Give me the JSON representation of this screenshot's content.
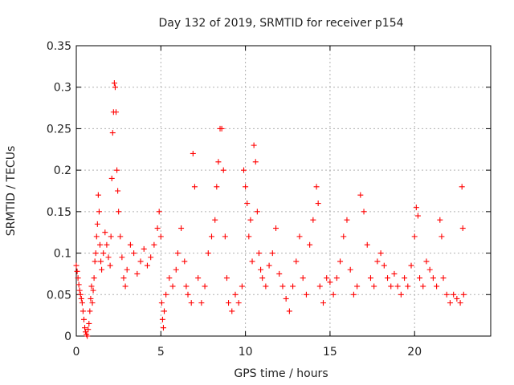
{
  "chart_data": {
    "type": "scatter",
    "title": "Day 132 of 2019, SRMTID for receiver p154",
    "xlabel": "GPS time / hours",
    "ylabel": "SRMTID / TECUs",
    "xlim": [
      0,
      24.5
    ],
    "ylim": [
      0,
      0.35
    ],
    "xticks": [
      0,
      5,
      10,
      15,
      20
    ],
    "xtick_labels": [
      "0",
      "5",
      "10",
      "15",
      "20"
    ],
    "yticks": [
      0,
      0.05,
      0.1,
      0.15,
      0.2,
      0.25,
      0.3,
      0.35
    ],
    "ytick_labels": [
      "0",
      "0.05",
      "0.1",
      "0.15",
      "0.2",
      "0.25",
      "0.3",
      "0.35"
    ],
    "grid": true,
    "marker": "+",
    "color": "#ff0000",
    "series": [
      {
        "name": "SRMTID",
        "points": [
          [
            0.0,
            0.085
          ],
          [
            0.05,
            0.078
          ],
          [
            0.1,
            0.07
          ],
          [
            0.15,
            0.062
          ],
          [
            0.2,
            0.055
          ],
          [
            0.25,
            0.05
          ],
          [
            0.3,
            0.045
          ],
          [
            0.35,
            0.04
          ],
          [
            0.4,
            0.03
          ],
          [
            0.45,
            0.02
          ],
          [
            0.5,
            0.01
          ],
          [
            0.55,
            0.005
          ],
          [
            0.6,
            0.002
          ],
          [
            0.65,
            0.0
          ],
          [
            0.7,
            0.008
          ],
          [
            0.75,
            0.015
          ],
          [
            0.8,
            0.03
          ],
          [
            0.85,
            0.045
          ],
          [
            0.9,
            0.06
          ],
          [
            0.95,
            0.04
          ],
          [
            1.0,
            0.055
          ],
          [
            1.05,
            0.07
          ],
          [
            1.1,
            0.09
          ],
          [
            1.15,
            0.1
          ],
          [
            1.2,
            0.12
          ],
          [
            1.25,
            0.135
          ],
          [
            1.3,
            0.17
          ],
          [
            1.35,
            0.15
          ],
          [
            1.4,
            0.11
          ],
          [
            1.45,
            0.09
          ],
          [
            1.5,
            0.08
          ],
          [
            1.6,
            0.1
          ],
          [
            1.7,
            0.125
          ],
          [
            1.8,
            0.11
          ],
          [
            1.9,
            0.095
          ],
          [
            2.0,
            0.085
          ],
          [
            2.05,
            0.12
          ],
          [
            2.1,
            0.19
          ],
          [
            2.15,
            0.245
          ],
          [
            2.2,
            0.27
          ],
          [
            2.25,
            0.305
          ],
          [
            2.3,
            0.3
          ],
          [
            2.35,
            0.27
          ],
          [
            2.4,
            0.2
          ],
          [
            2.45,
            0.175
          ],
          [
            2.5,
            0.15
          ],
          [
            2.6,
            0.12
          ],
          [
            2.7,
            0.095
          ],
          [
            2.8,
            0.07
          ],
          [
            2.9,
            0.06
          ],
          [
            3.0,
            0.08
          ],
          [
            3.2,
            0.11
          ],
          [
            3.4,
            0.1
          ],
          [
            3.6,
            0.075
          ],
          [
            3.8,
            0.09
          ],
          [
            4.0,
            0.105
          ],
          [
            4.2,
            0.085
          ],
          [
            4.4,
            0.095
          ],
          [
            4.6,
            0.11
          ],
          [
            4.8,
            0.13
          ],
          [
            4.9,
            0.15
          ],
          [
            5.0,
            0.12
          ],
          [
            5.05,
            0.04
          ],
          [
            5.1,
            0.02
          ],
          [
            5.15,
            0.01
          ],
          [
            5.2,
            0.03
          ],
          [
            5.3,
            0.05
          ],
          [
            5.5,
            0.07
          ],
          [
            5.7,
            0.06
          ],
          [
            5.9,
            0.08
          ],
          [
            6.0,
            0.1
          ],
          [
            6.2,
            0.13
          ],
          [
            6.4,
            0.09
          ],
          [
            6.5,
            0.06
          ],
          [
            6.6,
            0.05
          ],
          [
            6.8,
            0.04
          ],
          [
            6.9,
            0.22
          ],
          [
            7.0,
            0.18
          ],
          [
            7.2,
            0.07
          ],
          [
            7.4,
            0.04
          ],
          [
            7.6,
            0.06
          ],
          [
            7.8,
            0.1
          ],
          [
            8.0,
            0.12
          ],
          [
            8.2,
            0.14
          ],
          [
            8.3,
            0.18
          ],
          [
            8.4,
            0.21
          ],
          [
            8.5,
            0.25
          ],
          [
            8.6,
            0.25
          ],
          [
            8.7,
            0.2
          ],
          [
            8.8,
            0.12
          ],
          [
            8.9,
            0.07
          ],
          [
            9.0,
            0.04
          ],
          [
            9.2,
            0.03
          ],
          [
            9.4,
            0.05
          ],
          [
            9.6,
            0.04
          ],
          [
            9.8,
            0.06
          ],
          [
            9.9,
            0.2
          ],
          [
            10.0,
            0.18
          ],
          [
            10.1,
            0.16
          ],
          [
            10.2,
            0.12
          ],
          [
            10.3,
            0.14
          ],
          [
            10.4,
            0.09
          ],
          [
            10.5,
            0.23
          ],
          [
            10.6,
            0.21
          ],
          [
            10.7,
            0.15
          ],
          [
            10.8,
            0.1
          ],
          [
            10.9,
            0.08
          ],
          [
            11.0,
            0.07
          ],
          [
            11.2,
            0.06
          ],
          [
            11.4,
            0.085
          ],
          [
            11.6,
            0.1
          ],
          [
            11.8,
            0.13
          ],
          [
            12.0,
            0.075
          ],
          [
            12.2,
            0.06
          ],
          [
            12.4,
            0.045
          ],
          [
            12.6,
            0.03
          ],
          [
            12.8,
            0.06
          ],
          [
            13.0,
            0.09
          ],
          [
            13.2,
            0.12
          ],
          [
            13.4,
            0.07
          ],
          [
            13.6,
            0.05
          ],
          [
            13.8,
            0.11
          ],
          [
            14.0,
            0.14
          ],
          [
            14.2,
            0.18
          ],
          [
            14.3,
            0.16
          ],
          [
            14.4,
            0.06
          ],
          [
            14.6,
            0.04
          ],
          [
            14.8,
            0.07
          ],
          [
            15.0,
            0.065
          ],
          [
            15.2,
            0.05
          ],
          [
            15.4,
            0.07
          ],
          [
            15.6,
            0.09
          ],
          [
            15.8,
            0.12
          ],
          [
            16.0,
            0.14
          ],
          [
            16.2,
            0.08
          ],
          [
            16.4,
            0.05
          ],
          [
            16.6,
            0.06
          ],
          [
            16.8,
            0.17
          ],
          [
            17.0,
            0.15
          ],
          [
            17.2,
            0.11
          ],
          [
            17.4,
            0.07
          ],
          [
            17.6,
            0.06
          ],
          [
            17.8,
            0.09
          ],
          [
            18.0,
            0.1
          ],
          [
            18.2,
            0.085
          ],
          [
            18.4,
            0.07
          ],
          [
            18.6,
            0.06
          ],
          [
            18.8,
            0.075
          ],
          [
            19.0,
            0.06
          ],
          [
            19.2,
            0.05
          ],
          [
            19.4,
            0.07
          ],
          [
            19.6,
            0.06
          ],
          [
            19.8,
            0.085
          ],
          [
            20.0,
            0.12
          ],
          [
            20.1,
            0.155
          ],
          [
            20.2,
            0.145
          ],
          [
            20.3,
            0.07
          ],
          [
            20.5,
            0.06
          ],
          [
            20.7,
            0.09
          ],
          [
            20.9,
            0.08
          ],
          [
            21.1,
            0.07
          ],
          [
            21.3,
            0.06
          ],
          [
            21.5,
            0.14
          ],
          [
            21.6,
            0.12
          ],
          [
            21.7,
            0.07
          ],
          [
            21.9,
            0.05
          ],
          [
            22.1,
            0.04
          ],
          [
            22.3,
            0.05
          ],
          [
            22.5,
            0.045
          ],
          [
            22.7,
            0.04
          ],
          [
            22.8,
            0.18
          ],
          [
            22.85,
            0.13
          ],
          [
            22.9,
            0.05
          ]
        ]
      }
    ]
  }
}
